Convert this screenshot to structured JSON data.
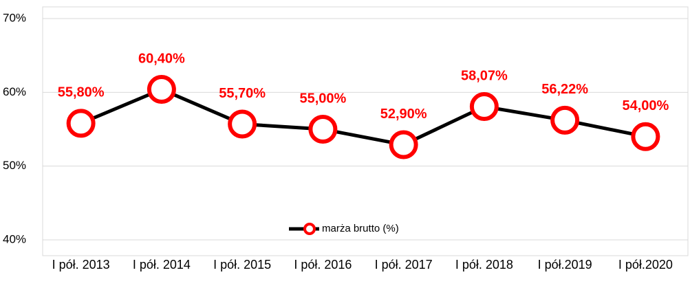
{
  "chart_data": {
    "type": "line",
    "categories": [
      "I pół. 2013",
      "I pół. 2014",
      "I pół. 2015",
      "I pół. 2016",
      "I pół. 2017",
      "I pół. 2018",
      "I pół.2019",
      "I pół.2020"
    ],
    "series": [
      {
        "name": "marża brutto (%)",
        "color": "#000000",
        "marker_color": "#ff0000",
        "values": [
          55.8,
          60.4,
          55.7,
          55.0,
          52.9,
          58.07,
          56.22,
          54.0
        ],
        "value_labels": [
          "55,80%",
          "60,40%",
          "55,70%",
          "55,00%",
          "52,90%",
          "58,07%",
          "56,22%",
          "54,00%"
        ]
      }
    ],
    "ylim": [
      40,
      70
    ],
    "yticks": [
      {
        "value": 40,
        "label": "40%"
      },
      {
        "value": 50,
        "label": "50%"
      },
      {
        "value": 60,
        "label": "60%"
      },
      {
        "value": 70,
        "label": "70%"
      }
    ],
    "grid": true,
    "legend": "bottom"
  }
}
